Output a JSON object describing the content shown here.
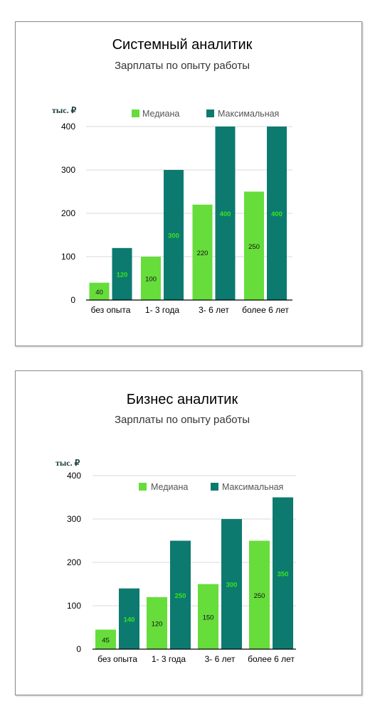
{
  "colors": {
    "median": "#66dd3b",
    "max": "#0d7a70",
    "median_label": "#111111",
    "max_label": "#39e51c"
  },
  "chart_data": [
    {
      "type": "bar",
      "title": "Системный аналитик",
      "subtitle": "Зарплаты по опыту работы",
      "ylabel": "тыс. ₽",
      "xlabel": "",
      "ylim": [
        0,
        400
      ],
      "yticks": [
        "0",
        "100",
        "200",
        "300",
        "400"
      ],
      "categories": [
        "без опыта",
        "1- 3 года",
        "3- 6 лет",
        "более 6 лет"
      ],
      "series": [
        {
          "name": "Медиана",
          "values": [
            40,
            100,
            220,
            250
          ],
          "labels": [
            "40",
            "100",
            "220",
            "250"
          ]
        },
        {
          "name": "Максимальная",
          "values": [
            120,
            300,
            400,
            400
          ],
          "labels": [
            "120",
            "300",
            "400",
            "400"
          ]
        }
      ],
      "grid": true,
      "legend": "top"
    },
    {
      "type": "bar",
      "title": "Бизнес аналитик",
      "subtitle": "Зарплаты по опыту работы",
      "ylabel": "тыс. ₽",
      "xlabel": "",
      "ylim": [
        0,
        400
      ],
      "yticks": [
        "0",
        "100",
        "200",
        "300",
        "400"
      ],
      "categories": [
        "без опыта",
        "1- 3 года",
        "3- 6 лет",
        "более 6 лет"
      ],
      "series": [
        {
          "name": "Медиана",
          "values": [
            45,
            120,
            150,
            250
          ],
          "labels": [
            "45",
            "120",
            "150",
            "250"
          ]
        },
        {
          "name": "Максимальная",
          "values": [
            140,
            250,
            300,
            350
          ],
          "labels": [
            "140",
            "250",
            "300",
            "350"
          ]
        }
      ],
      "grid": true,
      "legend": "top"
    }
  ]
}
